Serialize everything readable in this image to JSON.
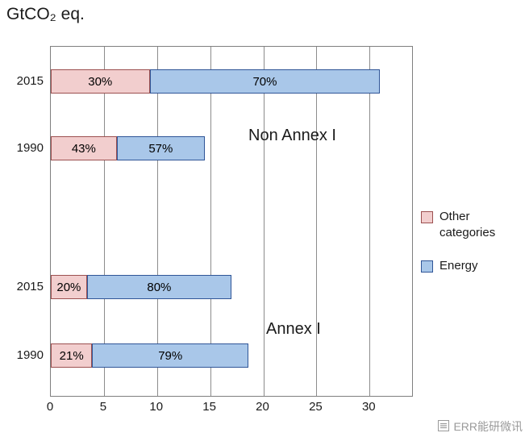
{
  "title": "GtCO₂ eq.",
  "watermark": "ERR能研微讯",
  "chart_data": {
    "type": "bar",
    "orientation": "horizontal",
    "stacked": true,
    "title": "GtCO₂ eq.",
    "xlim": [
      0,
      34
    ],
    "x_ticks": [
      0,
      5,
      10,
      15,
      20,
      25,
      30
    ],
    "grid": "vertical",
    "legend_position": "right",
    "legend": [
      {
        "label": "Other categories",
        "fill": "#f2cece",
        "border": "#9c5050"
      },
      {
        "label": "Energy",
        "fill": "#a9c7e9",
        "border": "#2f5597"
      }
    ],
    "groups": [
      {
        "label": "Non Annex I",
        "rows": [
          {
            "category": "2015",
            "total": 31.0,
            "segments": [
              {
                "name": "Other categories",
                "value": 9.3,
                "pct_label": "30%"
              },
              {
                "name": "Energy",
                "value": 21.7,
                "pct_label": "70%"
              }
            ]
          },
          {
            "category": "1990",
            "total": 14.5,
            "segments": [
              {
                "name": "Other categories",
                "value": 6.2,
                "pct_label": "43%"
              },
              {
                "name": "Energy",
                "value": 8.3,
                "pct_label": "57%"
              }
            ]
          }
        ]
      },
      {
        "label": "Annex I",
        "rows": [
          {
            "category": "2015",
            "total": 17.0,
            "segments": [
              {
                "name": "Other categories",
                "value": 3.4,
                "pct_label": "20%"
              },
              {
                "name": "Energy",
                "value": 13.6,
                "pct_label": "80%"
              }
            ]
          },
          {
            "category": "1990",
            "total": 18.6,
            "segments": [
              {
                "name": "Other categories",
                "value": 3.9,
                "pct_label": "21%"
              },
              {
                "name": "Energy",
                "value": 14.7,
                "pct_label": "79%"
              }
            ]
          }
        ]
      }
    ]
  }
}
